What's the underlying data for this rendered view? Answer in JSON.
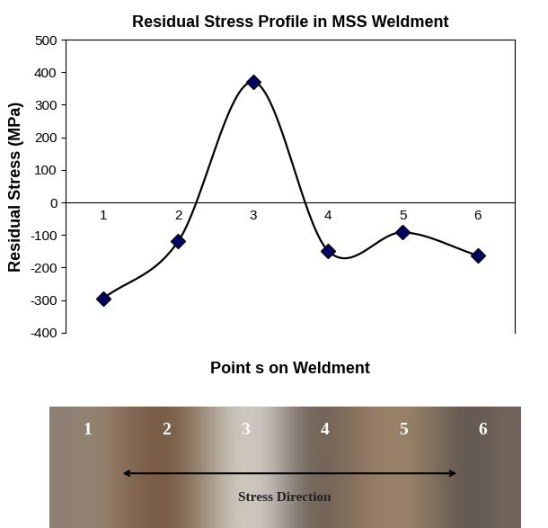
{
  "chart_data": {
    "type": "line",
    "title": "Residual Stress Profile in MSS Weldment",
    "x_label": "Point s on Weldment",
    "y_label": "Residual Stress (MPa)",
    "categories": [
      "1",
      "2",
      "3",
      "4",
      "5",
      "6"
    ],
    "values": [
      -295,
      -120,
      370,
      -148,
      -92,
      -163
    ],
    "color": "#000000",
    "marker": "D",
    "line_style": "smooth",
    "ylim": [
      -400,
      500
    ],
    "yticks": [
      -400,
      -300,
      -200,
      -100,
      0,
      100,
      200,
      300,
      400,
      500
    ],
    "grid": false
  },
  "image": {
    "labels": [
      "1",
      "2",
      "3",
      "4",
      "5",
      "6"
    ],
    "caption": "Stress Direction"
  }
}
